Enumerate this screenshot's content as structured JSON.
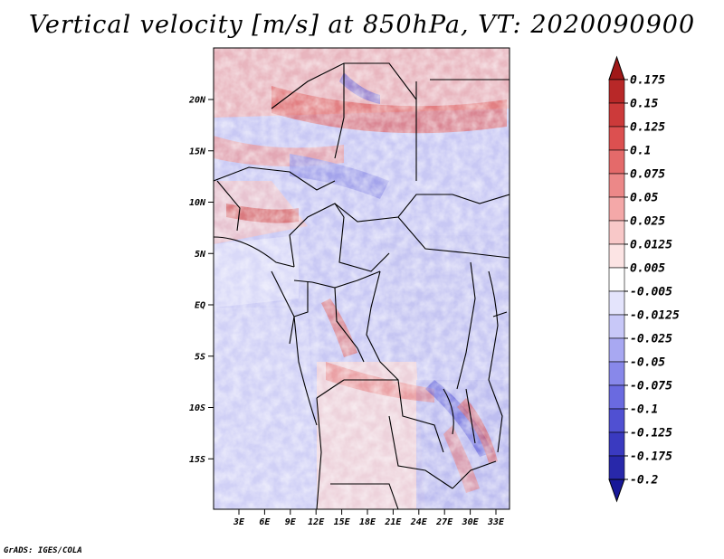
{
  "title": "Vertical velocity [m/s] at 850hPa, VT: 2020090900",
  "credit": "GrADS: IGES/COLA",
  "map": {
    "lat_ticks": [
      "20N",
      "15N",
      "10N",
      "5N",
      "EQ",
      "5S",
      "10S",
      "15S"
    ],
    "lon_ticks": [
      "3E",
      "6E",
      "9E",
      "12E",
      "15E",
      "18E",
      "21E",
      "24E",
      "27E",
      "30E",
      "33E"
    ]
  },
  "colorbar": {
    "labels": [
      "0.175",
      "0.15",
      "0.125",
      "0.1",
      "0.075",
      "0.05",
      "0.025",
      "0.0125",
      "0.005",
      "-0.005",
      "-0.0125",
      "-0.025",
      "-0.05",
      "-0.075",
      "-0.1",
      "-0.125",
      "-0.175",
      "-0.2"
    ],
    "colors": [
      "#a01818",
      "#b82828",
      "#cc3a3a",
      "#dc5050",
      "#e46a6a",
      "#ec8888",
      "#f4a8a8",
      "#f8c8c8",
      "#fce4e4",
      "#ffffff",
      "#e4e4fc",
      "#c8c8f8",
      "#a8a8f2",
      "#8888ea",
      "#6a6ae0",
      "#5050d2",
      "#3a3ac0",
      "#2828aa",
      "#181898"
    ]
  }
}
